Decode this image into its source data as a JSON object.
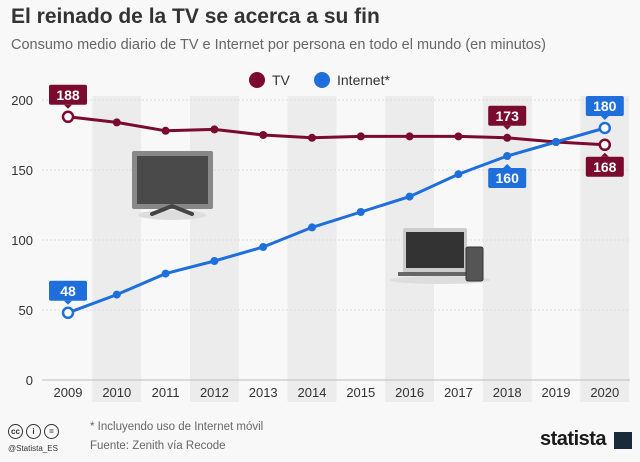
{
  "title": "El reinado de la TV se acerca a su fin",
  "subtitle": "Consumo medio diario de TV e Internet por persona en todo el mundo (en minutos)",
  "chart_data": {
    "type": "line",
    "title": "El reinado de la TV se acerca a su fin",
    "subtitle": "Consumo medio diario de TV e Internet por persona en todo el mundo (en minutos)",
    "x": [
      "2009",
      "2010",
      "2011",
      "2012",
      "2013",
      "2014",
      "2015",
      "2016",
      "2017",
      "2018",
      "2019",
      "2020"
    ],
    "series": [
      {
        "name": "TV",
        "color": "#7a0a2e",
        "values": [
          188,
          184,
          178,
          179,
          175,
          173,
          174,
          174,
          174,
          173,
          170,
          168
        ]
      },
      {
        "name": "Internet*",
        "color": "#1e6fdc",
        "values": [
          48,
          61,
          76,
          85,
          95,
          109,
          120,
          131,
          147,
          160,
          170,
          180
        ]
      }
    ],
    "ylim": [
      0,
      200
    ],
    "yticks": [
      "0",
      "50",
      "100",
      "150",
      "200"
    ],
    "grid": true,
    "legend": "top-center",
    "annotations": [
      {
        "series": 0,
        "index": 0,
        "text": "188",
        "pos": "above"
      },
      {
        "series": 1,
        "index": 0,
        "text": "48",
        "pos": "above"
      },
      {
        "series": 0,
        "index": 9,
        "text": "173",
        "pos": "above"
      },
      {
        "series": 1,
        "index": 9,
        "text": "160",
        "pos": "below"
      },
      {
        "series": 1,
        "index": 11,
        "text": "180",
        "pos": "above"
      },
      {
        "series": 0,
        "index": 11,
        "text": "168",
        "pos": "below"
      }
    ]
  },
  "footer": {
    "note": "* Incluyendo uso de Internet móvil",
    "source": "Fuente: Zenith vía Recode",
    "handle": "@Statista_ES",
    "logo": "statista"
  },
  "icons": [
    "tv-icon",
    "laptop-phone-icon",
    "creative-commons-icon"
  ]
}
